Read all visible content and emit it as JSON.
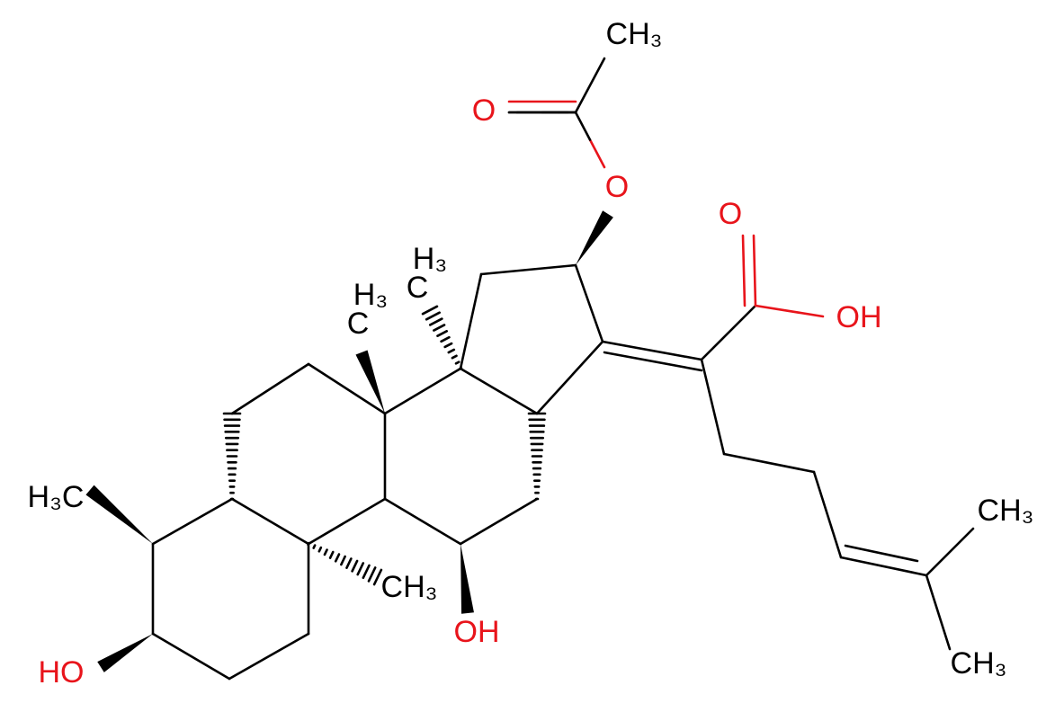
{
  "labels": {
    "acetyl_methyl": "CH₃",
    "acetyl_carbonyl_o": "O",
    "ester_o": "O",
    "acid_carbonyl_o": "O",
    "acid_oh": "OH",
    "c13_methyl_top": "H₃",
    "c13_methyl_bottom": "C",
    "c10_methyl_top": "H₃",
    "c10_methyl_bottom": "C",
    "c4_methyl": "H₃C",
    "c8_methyl": "CH₃",
    "c11_oh": "OH",
    "c3_oh": "HO",
    "terminal_methyl_top": "CH₃",
    "terminal_methyl_bottom": "CH₃"
  }
}
